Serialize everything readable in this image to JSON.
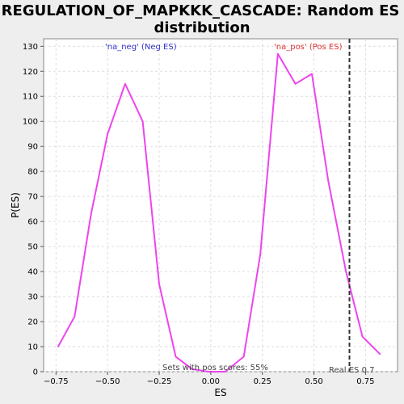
{
  "chart_data": {
    "type": "line",
    "title_lines": [
      "REGULATION_OF_MAPKKK_CASCADE: Random ES",
      "distribution"
    ],
    "xlabel": "ES",
    "ylabel": "P(ES)",
    "xlim": [
      -0.81,
      0.905
    ],
    "ylim": [
      0,
      133
    ],
    "xticks": [
      -0.75,
      -0.5,
      -0.25,
      0.0,
      0.25,
      0.5,
      0.75
    ],
    "xtick_labels": [
      "−0.75",
      "−0.50",
      "−0.25",
      "0.00",
      "0.25",
      "0.50",
      "0.75"
    ],
    "yticks": [
      0,
      10,
      20,
      30,
      40,
      50,
      60,
      70,
      80,
      90,
      100,
      110,
      120,
      130
    ],
    "ytick_labels": [
      "0",
      "10",
      "20",
      "30",
      "40",
      "50",
      "60",
      "70",
      "80",
      "90",
      "100",
      "110",
      "120",
      "130"
    ],
    "grid": true,
    "series": [
      {
        "color": "#ee44ee",
        "x": [
          -0.74,
          -0.66,
          -0.58,
          -0.5,
          -0.415,
          -0.33,
          -0.25,
          -0.17,
          -0.09,
          -0.01,
          0.07,
          0.16,
          0.24,
          0.325,
          0.41,
          0.49,
          0.57,
          0.655,
          0.735,
          0.82
        ],
        "y": [
          10,
          22,
          63,
          95,
          115,
          100,
          35,
          6,
          1,
          0,
          0,
          6,
          47,
          127,
          115,
          119,
          76,
          40,
          14,
          7
        ]
      }
    ],
    "real_es": 0.672,
    "annotations": {
      "neg_label": "'na_neg' (Neg ES)",
      "pos_label": "'na_pos' (Pos ES)",
      "sets_with_pos": "Sets with pos scores: 55%",
      "real_es_label": "Real ES 0.7"
    },
    "colors": {
      "neg_label": "#3333cc",
      "pos_label": "#dd3333",
      "real_es_line": "#333333",
      "plot_bg": "#ffffff",
      "grid": "#dddddd"
    }
  }
}
